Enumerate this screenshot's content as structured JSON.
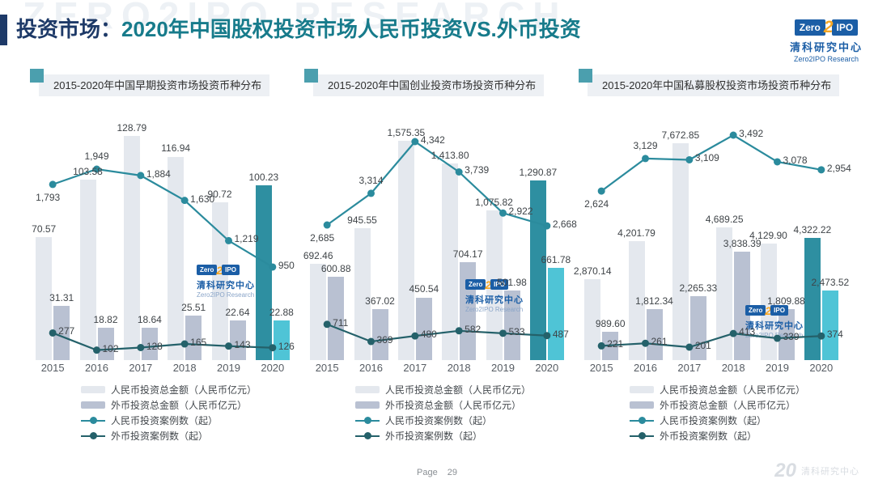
{
  "header": {
    "title_prefix": "投资市场：",
    "title_main": "2020年中国股权投资市场人民币投资VS.外币投资",
    "watermark": "ZERO2IPO RESEARCH"
  },
  "logo": {
    "zero": "Zero",
    "two": "2",
    "ipo": "IPO",
    "cn": "清科研究中心",
    "en": "Zero2IPO Research"
  },
  "legend": [
    "人民币投资总金额（人民币亿元）",
    "外币投资总金额（人民币亿元）",
    "人民币投资案例数（起）",
    "外币投资案例数（起）"
  ],
  "colors": {
    "header_navy": "#1e3a68",
    "header_teal": "#177b8b",
    "title_square": "#4b9fae",
    "bar_rmb": "#e4e8ee",
    "bar_foreign": "#b9c1d2",
    "bar_rmb_2020": "#2e8fa1",
    "bar_foreign_2020": "#4fc4d6",
    "line_rmb": "#2b8b9d",
    "line_foreign": "#24616a",
    "label_text": "#3f4448"
  },
  "chart_data": [
    {
      "type": "bar+line",
      "title": "2015-2020年中国早期投资市场投资币种分布",
      "categories": [
        "2015",
        "2016",
        "2017",
        "2018",
        "2019",
        "2020"
      ],
      "legend_position": "bottom",
      "grid": false,
      "series": [
        {
          "name": "人民币投资总金额（人民币亿元）",
          "type": "bar",
          "values": [
            70.57,
            103.58,
            128.79,
            116.94,
            90.72,
            100.23
          ],
          "labels": [
            "70.57",
            "103.58",
            "128.79",
            "116.94",
            "90.72",
            "100.23"
          ]
        },
        {
          "name": "外币投资总金额（人民币亿元）",
          "type": "bar",
          "values": [
            31.31,
            18.82,
            18.64,
            25.51,
            22.64,
            22.88
          ],
          "labels": [
            "31.31",
            "18.82",
            "18.64",
            "25.51",
            "22.64",
            "22.88"
          ]
        },
        {
          "name": "人民币投资案例数（起）",
          "type": "line",
          "values": [
            1793,
            1949,
            1884,
            1630,
            1219,
            950
          ],
          "labels": [
            "1,793",
            "1,949",
            "1,884",
            "1,630",
            "1,219",
            "950"
          ]
        },
        {
          "name": "外币投资案例数（起）",
          "type": "line",
          "values": [
            277,
            102,
            128,
            165,
            143,
            126
          ],
          "labels": [
            "277",
            "102",
            "128",
            "165",
            "143",
            "126"
          ]
        }
      ]
    },
    {
      "type": "bar+line",
      "title": "2015-2020年中国创业投资市场投资币种分布",
      "categories": [
        "2015",
        "2016",
        "2017",
        "2018",
        "2019",
        "2020"
      ],
      "legend_position": "bottom",
      "grid": false,
      "series": [
        {
          "name": "人民币投资总金额（人民币亿元）",
          "type": "bar",
          "values": [
            692.46,
            945.55,
            1575.35,
            1413.8,
            1075.82,
            1290.87
          ],
          "labels": [
            "692.46",
            "945.55",
            "1,575.35",
            "1,413.80",
            "1,075.82",
            "1,290.87"
          ]
        },
        {
          "name": "外币投资总金额（人民币亿元）",
          "type": "bar",
          "values": [
            600.88,
            367.02,
            450.54,
            704.17,
            501.98,
            661.78
          ],
          "labels": [
            "600.88",
            "367.02",
            "450.54",
            "704.17",
            "501.98",
            "661.78"
          ]
        },
        {
          "name": "人民币投资案例数（起）",
          "type": "line",
          "values": [
            2685,
            3314,
            4342,
            3739,
            2922,
            2668
          ],
          "labels": [
            "2,685",
            "3,314",
            "4,342",
            "3,739",
            "2,922",
            "2,668"
          ]
        },
        {
          "name": "外币投资案例数（起）",
          "type": "line",
          "values": [
            711,
            369,
            480,
            582,
            533,
            487
          ],
          "labels": [
            "711",
            "369",
            "480",
            "582",
            "533",
            "487"
          ]
        }
      ]
    },
    {
      "type": "bar+line",
      "title": "2015-2020年中国私募股权投资市场投资币种分布",
      "categories": [
        "2015",
        "2016",
        "2017",
        "2018",
        "2019",
        "2020"
      ],
      "legend_position": "bottom",
      "grid": false,
      "series": [
        {
          "name": "人民币投资总金额（人民币亿元）",
          "type": "bar",
          "values": [
            2870.14,
            4201.79,
            7672.85,
            4689.25,
            4129.9,
            4322.22
          ],
          "labels": [
            "2,870.14",
            "4,201.79",
            "7,672.85",
            "4,689.25",
            "4,129.90",
            "4,322.22"
          ]
        },
        {
          "name": "外币投资总金额（人民币亿元）",
          "type": "bar",
          "values": [
            989.6,
            1812.34,
            2265.33,
            3838.39,
            1809.88,
            2473.52
          ],
          "labels": [
            "989.60",
            "1,812.34",
            "2,265.33",
            "3,838.39",
            "1,809.88",
            "2,473.52"
          ]
        },
        {
          "name": "人民币投资案例数（起）",
          "type": "line",
          "values": [
            2624,
            3129,
            3109,
            3492,
            3078,
            2954
          ],
          "labels": [
            "2,624",
            "3,129",
            "3,109",
            "3,492",
            "3,078",
            "2,954"
          ]
        },
        {
          "name": "外币投资案例数（起）",
          "type": "line",
          "values": [
            221,
            261,
            201,
            413,
            339,
            374
          ],
          "labels": [
            "221",
            "261",
            "201",
            "413",
            "339",
            "374"
          ]
        }
      ]
    }
  ],
  "footer": {
    "page_label": "Page",
    "page_number": "29",
    "brand_number": "20",
    "brand_cn": "清科研究中心"
  }
}
